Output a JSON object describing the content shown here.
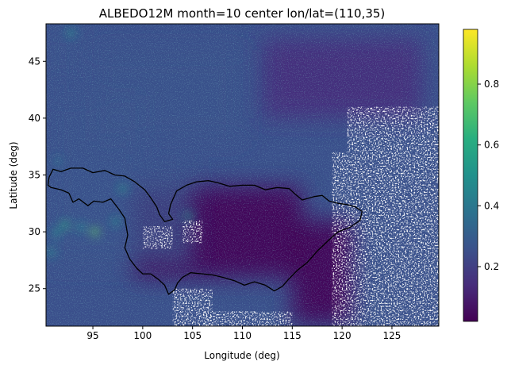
{
  "chart_data": {
    "type": "heatmap",
    "title": "ALBEDO12M month=10 center lon/lat=(110,35)",
    "xlabel": "Longitude (deg)",
    "ylabel": "Latitude (deg)",
    "xlim": [
      90.3,
      129.7
    ],
    "ylim": [
      21.7,
      48.3
    ],
    "x_ticks": [
      95,
      100,
      105,
      110,
      115,
      120,
      125
    ],
    "y_ticks": [
      25,
      30,
      35,
      40,
      45
    ],
    "colormap": "viridis",
    "colorbar": {
      "range": [
        0.02,
        0.98
      ],
      "ticks": [
        0.2,
        0.4,
        0.6,
        0.8
      ],
      "tick_labels": [
        "0.2",
        "0.4",
        "0.6",
        "0.8"
      ]
    },
    "no_data_color": "#ffffff",
    "overlay": "basin boundary outline (black)",
    "boundary_outline": [
      [
        90.6,
        34.8
      ],
      [
        90.5,
        34.1
      ],
      [
        90.8,
        33.9
      ],
      [
        91.8,
        33.7
      ],
      [
        92.6,
        33.4
      ],
      [
        93.0,
        32.6
      ],
      [
        93.6,
        32.9
      ],
      [
        94.5,
        32.3
      ],
      [
        95.1,
        32.7
      ],
      [
        96.0,
        32.6
      ],
      [
        96.8,
        32.9
      ],
      [
        97.6,
        32.0
      ],
      [
        98.2,
        31.2
      ],
      [
        98.5,
        29.7
      ],
      [
        98.2,
        28.6
      ],
      [
        98.7,
        27.6
      ],
      [
        99.4,
        26.8
      ],
      [
        100.0,
        26.3
      ],
      [
        100.8,
        26.3
      ],
      [
        101.6,
        25.8
      ],
      [
        102.2,
        25.3
      ],
      [
        102.6,
        24.5
      ],
      [
        103.2,
        24.9
      ],
      [
        103.5,
        25.5
      ],
      [
        104.0,
        26.0
      ],
      [
        104.8,
        26.4
      ],
      [
        106.0,
        26.3
      ],
      [
        107.0,
        26.2
      ],
      [
        108.0,
        26.0
      ],
      [
        109.2,
        25.7
      ],
      [
        110.2,
        25.3
      ],
      [
        111.2,
        25.6
      ],
      [
        112.3,
        25.3
      ],
      [
        113.2,
        24.8
      ],
      [
        114.0,
        25.2
      ],
      [
        114.6,
        25.8
      ],
      [
        115.5,
        26.6
      ],
      [
        116.5,
        27.3
      ],
      [
        117.5,
        28.3
      ],
      [
        118.7,
        29.3
      ],
      [
        119.6,
        30.0
      ],
      [
        120.8,
        30.4
      ],
      [
        121.8,
        31.0
      ],
      [
        122.0,
        31.8
      ],
      [
        121.3,
        32.2
      ],
      [
        120.5,
        32.4
      ],
      [
        119.6,
        32.5
      ],
      [
        118.7,
        32.7
      ],
      [
        118.0,
        33.2
      ],
      [
        117.2,
        33.1
      ],
      [
        116.0,
        32.8
      ],
      [
        115.3,
        33.3
      ],
      [
        114.7,
        33.8
      ],
      [
        113.5,
        33.9
      ],
      [
        112.3,
        33.7
      ],
      [
        111.2,
        34.1
      ],
      [
        110.0,
        34.1
      ],
      [
        108.7,
        34.0
      ],
      [
        107.6,
        34.3
      ],
      [
        106.6,
        34.5
      ],
      [
        105.4,
        34.4
      ],
      [
        104.4,
        34.1
      ],
      [
        103.4,
        33.6
      ],
      [
        102.8,
        32.4
      ],
      [
        102.6,
        31.6
      ],
      [
        103.0,
        31.1
      ],
      [
        102.2,
        30.9
      ],
      [
        101.7,
        31.5
      ],
      [
        101.4,
        32.2
      ],
      [
        100.8,
        33.0
      ],
      [
        100.2,
        33.7
      ],
      [
        99.2,
        34.4
      ],
      [
        98.2,
        34.9
      ],
      [
        97.2,
        35.0
      ],
      [
        96.2,
        35.4
      ],
      [
        95.0,
        35.2
      ],
      [
        94.0,
        35.6
      ],
      [
        92.8,
        35.6
      ],
      [
        91.8,
        35.3
      ],
      [
        91.0,
        35.5
      ],
      [
        90.6,
        34.8
      ]
    ],
    "data_regions": {
      "dark_low_albedo": [
        {
          "lon": [
            99,
            116
          ],
          "lat": [
            26,
            34
          ],
          "albedo": 0.07
        },
        {
          "lon": [
            115,
            121
          ],
          "lat": [
            22,
            31
          ],
          "albedo": 0.06
        },
        {
          "lon": [
            112,
            128
          ],
          "lat": [
            40,
            47
          ],
          "albedo": 0.08
        }
      ],
      "bright_high_albedo": [
        {
          "lon": [
            90.5,
            93.5
          ],
          "lat": [
            43,
            48
          ],
          "albedo": 0.22
        },
        {
          "lon": [
            95,
            110
          ],
          "lat": [
            38,
            46
          ],
          "albedo": 0.25
        },
        {
          "lon": [
            90.5,
            100
          ],
          "lat": [
            36,
            42
          ],
          "albedo": 0.27
        },
        {
          "lon": [
            90.5,
            105
          ],
          "lat": [
            27,
            36
          ],
          "albedo": 0.2
        }
      ],
      "snow_peaks": [
        {
          "lon": 92.2,
          "lat": 30.6,
          "albedo": 0.6
        },
        {
          "lon": 93.8,
          "lat": 30.4,
          "albedo": 0.55
        },
        {
          "lon": 95.2,
          "lat": 30.0,
          "albedo": 0.7
        },
        {
          "lon": 91.3,
          "lat": 29.9,
          "albedo": 0.45
        },
        {
          "lon": 98.0,
          "lat": 33.8,
          "albedo": 0.5
        },
        {
          "lon": 97.3,
          "lat": 30.9,
          "albedo": 0.45
        },
        {
          "lon": 90.8,
          "lat": 28.2,
          "albedo": 0.55
        },
        {
          "lon": 92.8,
          "lat": 47.5,
          "albedo": 0.5
        },
        {
          "lon": 91.5,
          "lat": 36.2,
          "albedo": 0.4
        },
        {
          "lon": 104.6,
          "lat": 31.4,
          "albedo": 0.45
        }
      ],
      "no_data": [
        {
          "lon": [
            119,
            129.7
          ],
          "lat": [
            21.7,
            37
          ]
        },
        {
          "lon": [
            120.5,
            129.7
          ],
          "lat": [
            37,
            41
          ]
        },
        {
          "lon": [
            103,
            107
          ],
          "lat": [
            21.7,
            25
          ]
        },
        {
          "lon": [
            106,
            115
          ],
          "lat": [
            21.7,
            23
          ]
        },
        {
          "lon": [
            100,
            103
          ],
          "lat": [
            28.5,
            30.5
          ]
        },
        {
          "lon": [
            104,
            106
          ],
          "lat": [
            29,
            31
          ]
        }
      ]
    }
  }
}
